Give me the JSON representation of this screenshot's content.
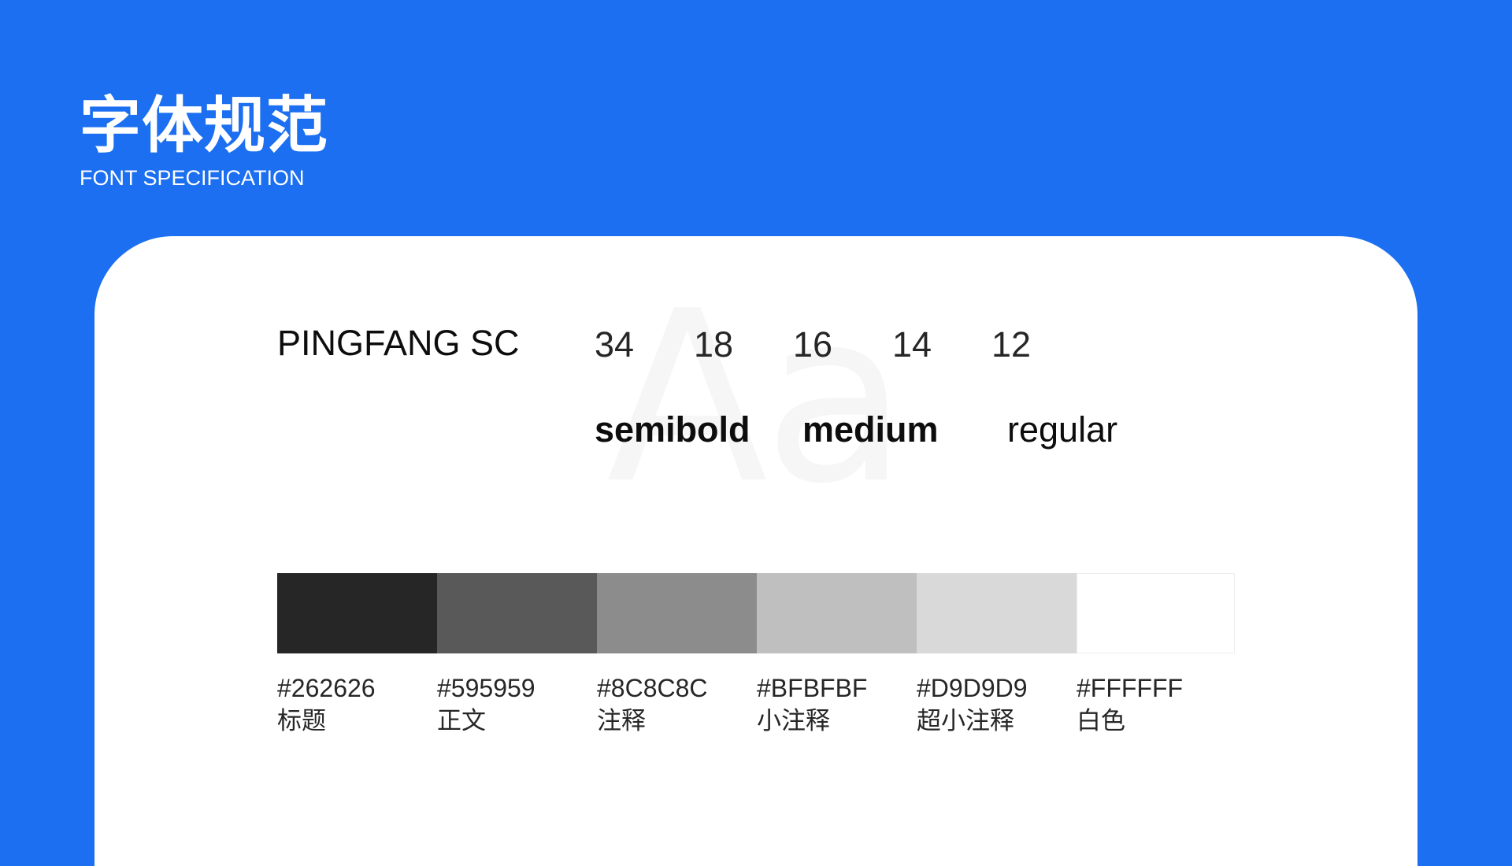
{
  "header": {
    "title": "字体规范",
    "subtitle": "FONT SPECIFICATION"
  },
  "card": {
    "watermark": "Aa",
    "font_name": "PINGFANG SC",
    "sizes": [
      "34",
      "18",
      "16",
      "14",
      "12"
    ],
    "weights": [
      "semibold",
      "medium",
      "regular"
    ]
  },
  "palette": [
    {
      "hex": "#262626",
      "label": "标题"
    },
    {
      "hex": "#595959",
      "label": "正文"
    },
    {
      "hex": "#8C8C8C",
      "label": "注释"
    },
    {
      "hex": "#BFBFBF",
      "label": "小注释"
    },
    {
      "hex": "#D9D9D9",
      "label": "超小注释"
    },
    {
      "hex": "#FFFFFF",
      "label": "白色"
    }
  ],
  "colors": {
    "background": "#1b6ff0",
    "card": "#ffffff"
  }
}
